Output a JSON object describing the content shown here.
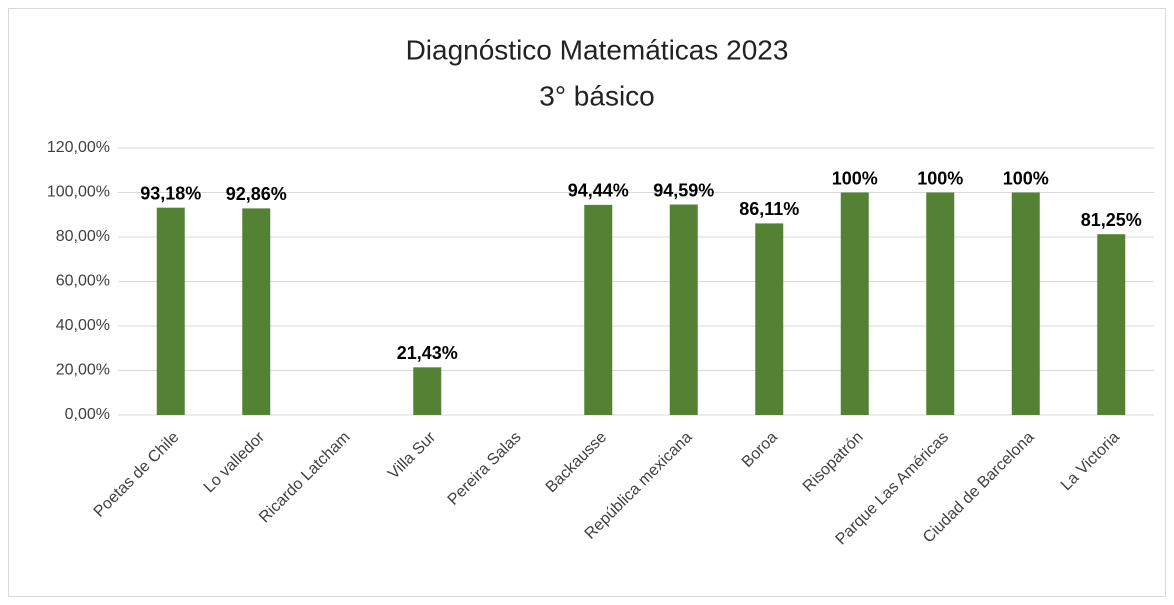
{
  "chart_data": {
    "type": "bar",
    "title": "Diagnóstico Matemáticas 2023",
    "subtitle": "3° básico",
    "categories": [
      "Poetas de Chile",
      "Lo valledor",
      "Ricardo Latcham",
      "Villa Sur",
      "Pereira Salas",
      "Backausse",
      "República mexicana",
      "Boroa",
      "Risopatrón",
      "Parque Las Américas",
      "Ciudad de Barcelona",
      "La Victoria"
    ],
    "values": [
      93.18,
      92.86,
      null,
      21.43,
      null,
      94.44,
      94.59,
      86.11,
      100,
      100,
      100,
      81.25
    ],
    "value_labels": [
      "93,18%",
      "92,86%",
      null,
      "21,43%",
      null,
      "94,44%",
      "94,59%",
      "86,11%",
      "100%",
      "100%",
      "100%",
      "81,25%"
    ],
    "color": "#548235",
    "ylim": [
      0,
      120
    ],
    "yticks": [
      {
        "value": 0,
        "label": "0,00%"
      },
      {
        "value": 20,
        "label": "20,00%"
      },
      {
        "value": 40,
        "label": "40,00%"
      },
      {
        "value": 60,
        "label": "60,00%"
      },
      {
        "value": 80,
        "label": "80,00%"
      },
      {
        "value": 100,
        "label": "100,00%"
      },
      {
        "value": 120,
        "label": "120,00%"
      }
    ],
    "grid": true
  }
}
